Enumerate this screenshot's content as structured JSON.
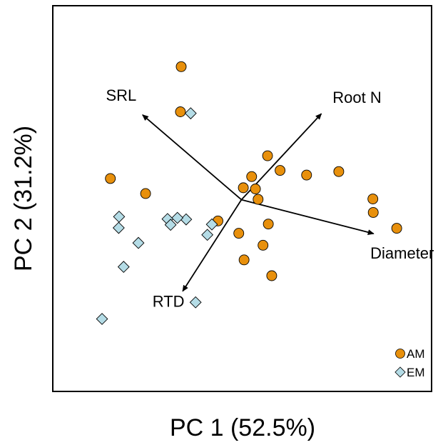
{
  "chart_data": {
    "type": "scatter",
    "title": "",
    "xlabel": "PC 1  (52.5%)",
    "ylabel": "PC 2  (31.2%)",
    "xlim": [
      0,
      1
    ],
    "ylim": [
      0,
      1
    ],
    "grid": false,
    "legend_position": "bottom-right",
    "series": [
      {
        "name": "AM",
        "marker": "circle",
        "color": "#E8900C",
        "points": [
          [
            0.339,
            0.842
          ],
          [
            0.337,
            0.725
          ],
          [
            0.152,
            0.552
          ],
          [
            0.245,
            0.513
          ],
          [
            0.436,
            0.442
          ],
          [
            0.567,
            0.611
          ],
          [
            0.6,
            0.573
          ],
          [
            0.67,
            0.561
          ],
          [
            0.755,
            0.57
          ],
          [
            0.503,
            0.528
          ],
          [
            0.525,
            0.557
          ],
          [
            0.535,
            0.525
          ],
          [
            0.542,
            0.498
          ],
          [
            0.845,
            0.499
          ],
          [
            0.846,
            0.464
          ],
          [
            0.908,
            0.423
          ],
          [
            0.491,
            0.41
          ],
          [
            0.569,
            0.434
          ],
          [
            0.555,
            0.379
          ],
          [
            0.505,
            0.341
          ],
          [
            0.578,
            0.3
          ]
        ]
      },
      {
        "name": "EM",
        "marker": "diamond",
        "color": "#B4DCE6",
        "points": [
          [
            0.364,
            0.721
          ],
          [
            0.175,
            0.453
          ],
          [
            0.352,
            0.446
          ],
          [
            0.42,
            0.433
          ],
          [
            0.174,
            0.424
          ],
          [
            0.303,
            0.447
          ],
          [
            0.329,
            0.45
          ],
          [
            0.311,
            0.432
          ],
          [
            0.408,
            0.406
          ],
          [
            0.226,
            0.385
          ],
          [
            0.187,
            0.323
          ],
          [
            0.377,
            0.231
          ],
          [
            0.13,
            0.188
          ]
        ]
      }
    ],
    "vectors": [
      {
        "label": "SRL",
        "x0": 0.498,
        "y0": 0.497,
        "x1": 0.237,
        "y1": 0.717
      },
      {
        "label": "Root N",
        "x0": 0.498,
        "y0": 0.497,
        "x1": 0.709,
        "y1": 0.72
      },
      {
        "label": "Diameter",
        "x0": 0.498,
        "y0": 0.497,
        "x1": 0.847,
        "y1": 0.409
      },
      {
        "label": "RTD",
        "x0": 0.498,
        "y0": 0.497,
        "x1": 0.343,
        "y1": 0.26
      }
    ]
  }
}
